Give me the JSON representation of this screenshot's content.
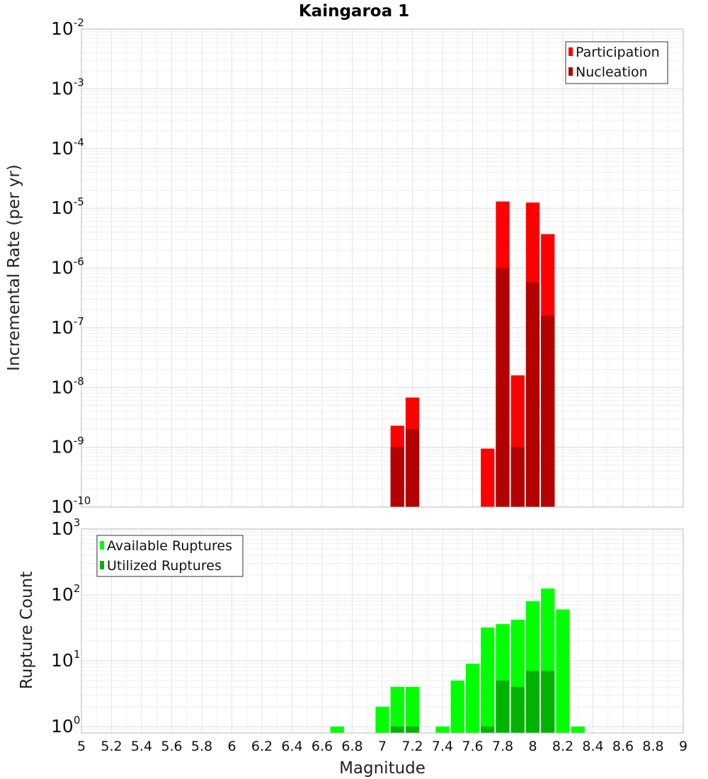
{
  "chart_data": [
    {
      "type": "bar",
      "title": "Kaingaroa 1",
      "xlabel": "Magnitude",
      "ylabel": "Incremental Rate (per yr)",
      "xlim": [
        5,
        9
      ],
      "ylim": [
        1e-10,
        0.01
      ],
      "yscale": "log",
      "grid": true,
      "legend_position": "top-right",
      "bin_width": 0.1,
      "x": [
        7.1,
        7.2,
        7.7,
        7.8,
        7.9,
        8.0,
        8.1
      ],
      "series": [
        {
          "name": "Participation",
          "color": "#ff0000",
          "values": [
            2.3e-09,
            6.8e-09,
            9.5e-10,
            1.3e-05,
            1.6e-08,
            1.25e-05,
            3.7e-06
          ]
        },
        {
          "name": "Nucleation",
          "color": "#b30000",
          "values": [
            1e-09,
            2e-09,
            null,
            1e-06,
            1e-09,
            5.8e-07,
            1.6e-07
          ]
        }
      ],
      "y_ticks": [
        {
          "base": "10",
          "exp": "-10",
          "value": 1e-10
        },
        {
          "base": "10",
          "exp": "-9",
          "value": 1e-09
        },
        {
          "base": "10",
          "exp": "-8",
          "value": 1e-08
        },
        {
          "base": "10",
          "exp": "-7",
          "value": 1e-07
        },
        {
          "base": "10",
          "exp": "-6",
          "value": 1e-06
        },
        {
          "base": "10",
          "exp": "-5",
          "value": 1e-05
        },
        {
          "base": "10",
          "exp": "-4",
          "value": 0.0001
        },
        {
          "base": "10",
          "exp": "-3",
          "value": 0.001
        },
        {
          "base": "10",
          "exp": "-2",
          "value": 0.01
        }
      ]
    },
    {
      "type": "bar",
      "xlabel": "Magnitude",
      "ylabel": "Rupture Count",
      "xlim": [
        5,
        9
      ],
      "ylim": [
        0.8,
        1000
      ],
      "yscale": "log",
      "grid": true,
      "legend_position": "top-left",
      "bin_width": 0.1,
      "x": [
        6.7,
        7.0,
        7.1,
        7.2,
        7.4,
        7.5,
        7.6,
        7.7,
        7.8,
        7.9,
        8.0,
        8.1,
        8.2,
        8.3
      ],
      "series": [
        {
          "name": "Available Ruptures",
          "color": "#00ff00",
          "values": [
            1,
            2,
            4,
            4,
            1,
            5,
            9,
            32,
            36,
            42,
            80,
            125,
            60,
            1
          ]
        },
        {
          "name": "Utilized Ruptures",
          "color": "#00b300",
          "values": [
            null,
            null,
            1,
            1,
            null,
            null,
            null,
            1,
            5,
            4,
            7,
            7,
            null,
            null
          ]
        }
      ],
      "y_ticks": [
        {
          "base": "10",
          "exp": "0",
          "value": 1
        },
        {
          "base": "10",
          "exp": "1",
          "value": 10
        },
        {
          "base": "10",
          "exp": "2",
          "value": 100
        },
        {
          "base": "10",
          "exp": "3",
          "value": 1000
        }
      ]
    }
  ],
  "x_tick_labels": [
    "5",
    "5.2",
    "5.4",
    "5.6",
    "5.8",
    "6",
    "6.2",
    "6.4",
    "6.6",
    "6.8",
    "7",
    "7.2",
    "7.4",
    "7.6",
    "7.8",
    "8",
    "8.2",
    "8.4",
    "8.6",
    "8.8",
    "9"
  ]
}
